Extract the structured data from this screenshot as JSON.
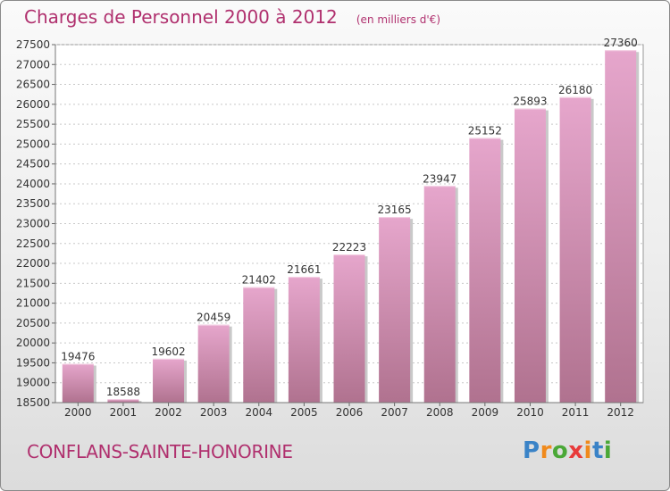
{
  "header": {
    "title": "Charges de Personnel 2000 à 2012",
    "subtitle": "(en milliers d'€)"
  },
  "footer": {
    "commune": "CONFLANS-SAINTE-HONORINE",
    "logo_text": "Proxiti"
  },
  "colors": {
    "bar_top": "#e6a6cc",
    "bar_bottom": "#b0728f",
    "title": "#b0306e"
  },
  "chart_data": {
    "type": "bar",
    "title": "Charges de Personnel 2000 à 2012",
    "subtitle": "(en milliers d'€)",
    "categories": [
      "2000",
      "2001",
      "2002",
      "2003",
      "2004",
      "2005",
      "2006",
      "2007",
      "2008",
      "2009",
      "2010",
      "2011",
      "2012"
    ],
    "values": [
      19476,
      18588,
      19602,
      20459,
      21402,
      21661,
      22223,
      23165,
      23947,
      25152,
      25893,
      26180,
      27360
    ],
    "ylim": [
      18500,
      27500
    ],
    "yticks": [
      18500,
      19000,
      19500,
      20000,
      20500,
      21000,
      21500,
      22000,
      22500,
      23000,
      23500,
      24000,
      24500,
      25000,
      25500,
      26000,
      26500,
      27000,
      27500
    ],
    "grid": true,
    "legend": "none"
  }
}
